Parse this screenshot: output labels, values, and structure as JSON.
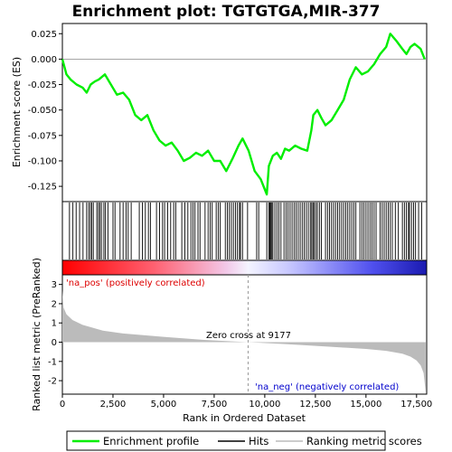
{
  "chart_data": {
    "type": "line",
    "title": "Enrichment plot: TGTGTGA,MIR-377",
    "x_axis": {
      "label": "Rank in Ordered Dataset",
      "range": [
        0,
        18000
      ],
      "ticks": [
        0,
        2500,
        5000,
        7500,
        10000,
        12500,
        15000,
        17500
      ],
      "tick_labels": [
        "0",
        "2,500",
        "5,000",
        "7,500",
        "10,000",
        "12,500",
        "15,000",
        "17,500"
      ]
    },
    "es_panel": {
      "ylabel": "Enrichment score (ES)",
      "ylim": [
        -0.14,
        0.035
      ],
      "yticks": [
        0.025,
        0.0,
        -0.025,
        -0.05,
        -0.075,
        -0.1,
        -0.125
      ],
      "ytick_labels": [
        "0.025",
        "0.000",
        "-0.025",
        "-0.050",
        "-0.075",
        "-0.100",
        "-0.125"
      ],
      "series": {
        "name": "Enrichment profile",
        "color": "#00ee00",
        "x": [
          0,
          200,
          400,
          700,
          1000,
          1200,
          1400,
          1600,
          1800,
          2100,
          2400,
          2700,
          3000,
          3300,
          3600,
          3900,
          4200,
          4500,
          4800,
          5100,
          5400,
          5700,
          6000,
          6300,
          6600,
          6900,
          7200,
          7500,
          7800,
          8100,
          8400,
          8700,
          8900,
          9200,
          9500,
          9800,
          10000,
          10100,
          10200,
          10400,
          10600,
          10800,
          11000,
          11200,
          11500,
          11800,
          12100,
          12300,
          12400,
          12600,
          12800,
          13000,
          13300,
          13600,
          13900,
          14200,
          14500,
          14800,
          15100,
          15400,
          15700,
          16000,
          16200,
          16500,
          16800,
          17000,
          17200,
          17400,
          17700,
          17900
        ],
        "y": [
          0.0,
          -0.015,
          -0.02,
          -0.025,
          -0.028,
          -0.033,
          -0.025,
          -0.022,
          -0.02,
          -0.015,
          -0.025,
          -0.035,
          -0.033,
          -0.04,
          -0.055,
          -0.06,
          -0.055,
          -0.07,
          -0.08,
          -0.085,
          -0.082,
          -0.09,
          -0.1,
          -0.097,
          -0.092,
          -0.095,
          -0.09,
          -0.1,
          -0.1,
          -0.11,
          -0.098,
          -0.085,
          -0.078,
          -0.09,
          -0.11,
          -0.118,
          -0.128,
          -0.133,
          -0.105,
          -0.095,
          -0.092,
          -0.098,
          -0.088,
          -0.09,
          -0.085,
          -0.088,
          -0.09,
          -0.07,
          -0.055,
          -0.05,
          -0.058,
          -0.065,
          -0.06,
          -0.05,
          -0.04,
          -0.02,
          -0.008,
          -0.015,
          -0.012,
          -0.005,
          0.005,
          0.012,
          0.025,
          0.018,
          0.01,
          0.005,
          0.012,
          0.015,
          0.01,
          0.0
        ]
      }
    },
    "hits_panel": {
      "label": "Hits",
      "positions": [
        350,
        520,
        680,
        850,
        1020,
        1200,
        1300,
        1380,
        1450,
        1530,
        1700,
        1780,
        1850,
        1930,
        2050,
        2130,
        2250,
        2500,
        2600,
        2850,
        3000,
        3150,
        3250,
        3400,
        3800,
        3950,
        4100,
        4250,
        4350,
        4650,
        4800,
        4950,
        5050,
        5200,
        5350,
        5500,
        5600,
        5900,
        6050,
        6200,
        6350,
        6450,
        6550,
        6700,
        6800,
        7050,
        7200,
        7300,
        7400,
        7600,
        7700,
        7800,
        8050,
        8150,
        8250,
        8350,
        8450,
        8550,
        8650,
        8750,
        8800,
        8900,
        9150,
        9600,
        9700,
        10100,
        10200,
        10250,
        10300,
        10350,
        10400,
        10500,
        10600,
        10700,
        10800,
        10950,
        11050,
        11150,
        11250,
        11350,
        11450,
        11550,
        11650,
        11750,
        11850,
        11950,
        12050,
        12150,
        12250,
        12320,
        12380,
        12440,
        12520,
        12600,
        12700,
        12800,
        13000,
        13100,
        13200,
        13300,
        13400,
        13500,
        13600,
        13700,
        13800,
        13900,
        14000,
        14100,
        14200,
        14300,
        14400,
        14500,
        14700,
        14800,
        14900,
        15000,
        15100,
        15200,
        15300,
        15400,
        15500,
        15700,
        15800,
        15900,
        16000,
        16100,
        16200,
        16300,
        16450,
        16600,
        16800,
        16900,
        17000,
        17100,
        17150,
        17250,
        17350,
        17450,
        17600,
        17750
      ]
    },
    "metric_panel": {
      "ylabel": "Ranked list metric (PreRanked)",
      "ylim": [
        -2.7,
        3.5
      ],
      "yticks": [
        3,
        2,
        1,
        0,
        -1,
        -2
      ],
      "ytick_labels": [
        "3",
        "2",
        "1",
        "0",
        "-1",
        "-2"
      ],
      "zero_cross": 9177,
      "profile_x": [
        0,
        60,
        200,
        500,
        1000,
        2000,
        3000,
        5000,
        7000,
        9177,
        11000,
        13000,
        15000,
        16000,
        16800,
        17200,
        17500,
        17700,
        17850,
        17950
      ],
      "profile_y": [
        2.7,
        1.8,
        1.45,
        1.15,
        0.9,
        0.6,
        0.45,
        0.28,
        0.12,
        0.0,
        -0.1,
        -0.22,
        -0.35,
        -0.45,
        -0.6,
        -0.75,
        -0.95,
        -1.2,
        -1.6,
        -2.6
      ]
    },
    "annotations": {
      "pos_label": "'na_pos' (positively correlated)",
      "neg_label": "'na_neg' (negatively correlated)",
      "zero_cross_label": "Zero cross at 9177"
    },
    "legend": {
      "items": [
        {
          "label": "Enrichment profile",
          "color": "#00ee00",
          "style": "line"
        },
        {
          "label": "Hits",
          "color": "#000000",
          "style": "line"
        },
        {
          "label": "Ranking metric scores",
          "color": "#bbbbbb",
          "style": "line"
        }
      ],
      "placement": "bottom"
    },
    "colors": {
      "profile": "#00ee00",
      "pos_label": "#dd0000",
      "neg_label": "#0000cc",
      "metric_fill": "#bbbbbb"
    }
  }
}
